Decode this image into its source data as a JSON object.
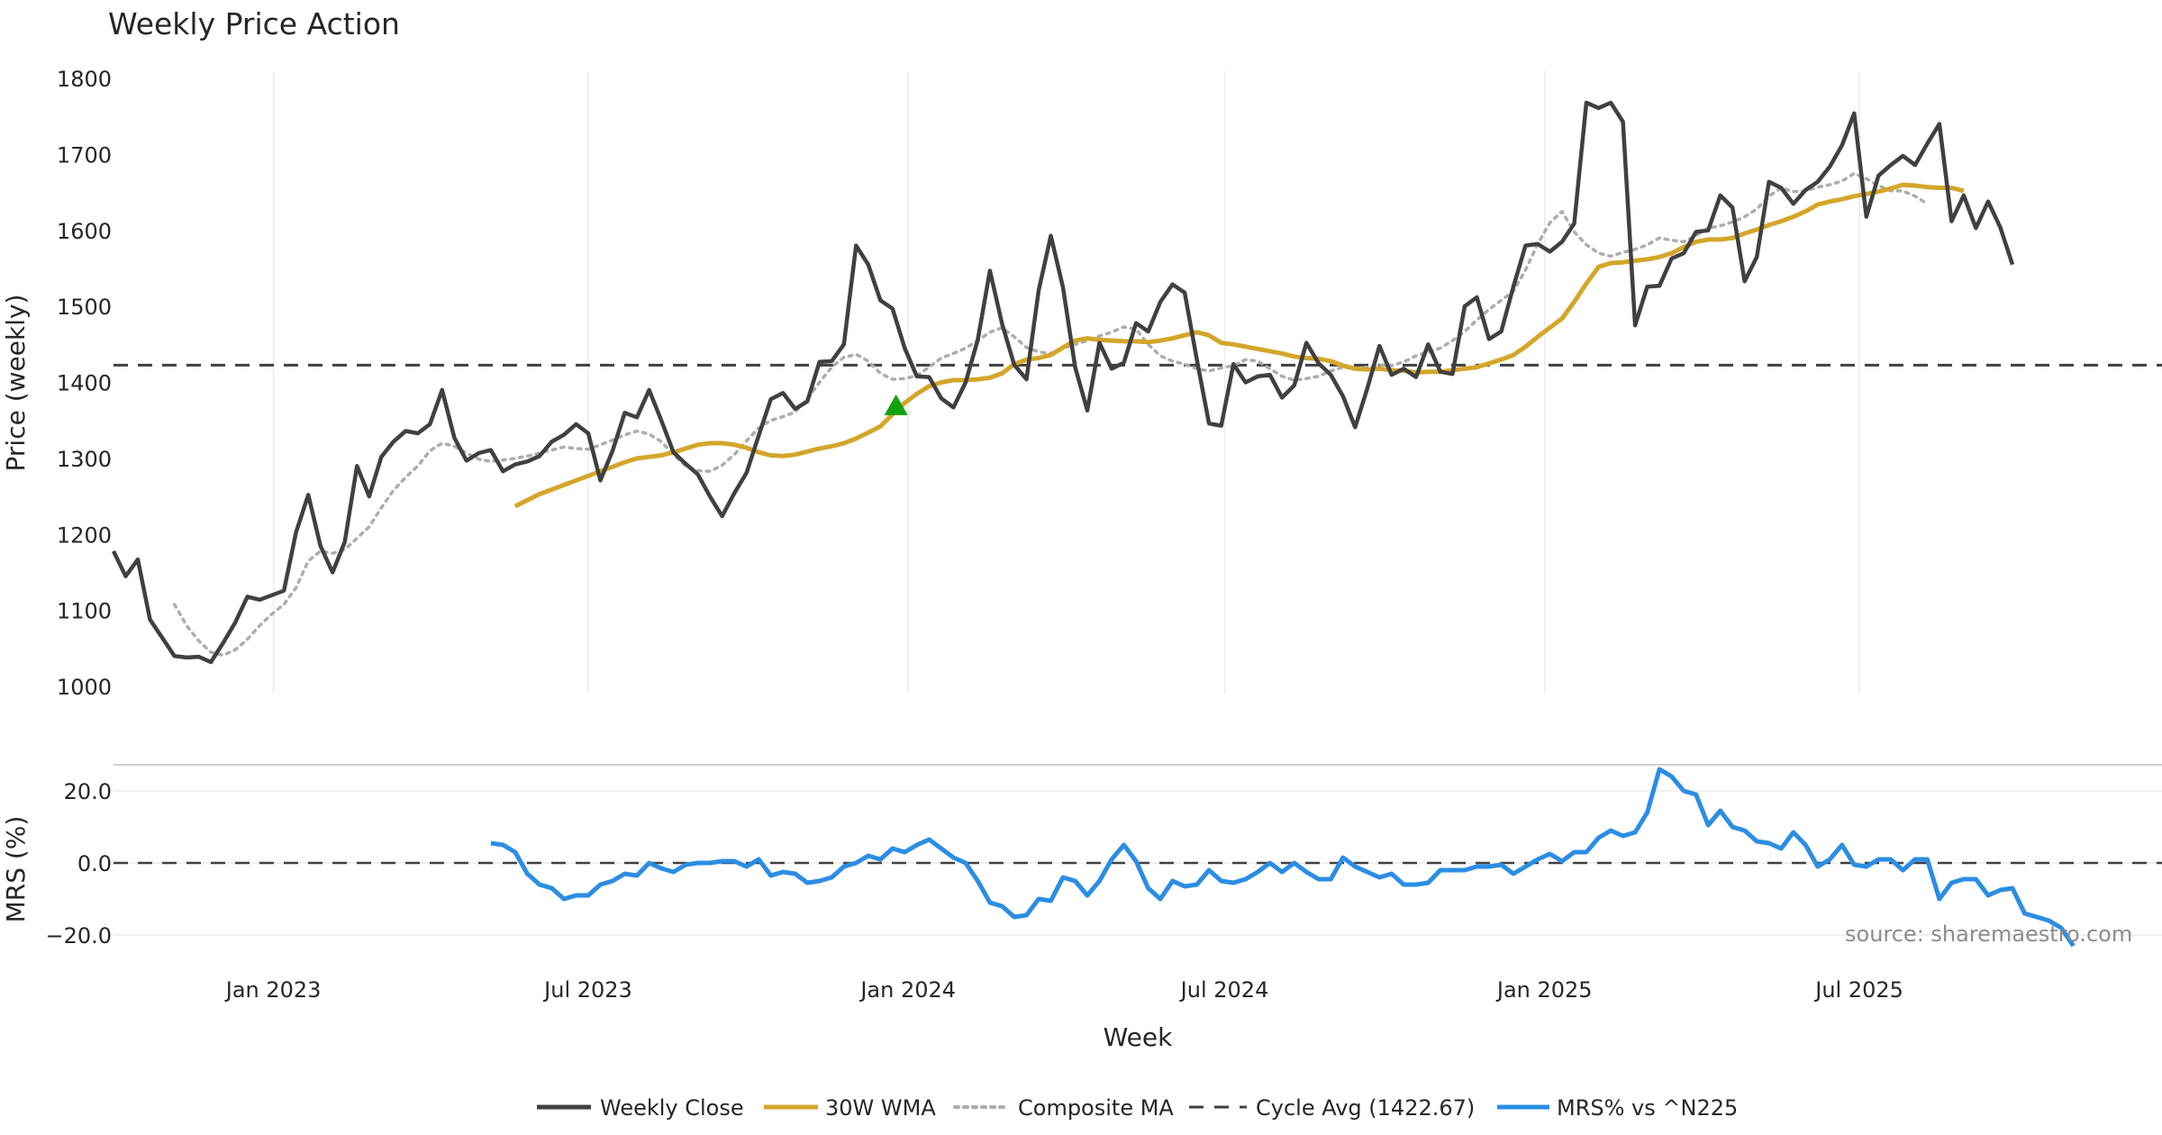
{
  "chart_data": {
    "type": "line",
    "title": "Weekly Price Action",
    "xlabel": "Week",
    "source": "source: sharemaestro.com",
    "x_ticks": [
      {
        "label": "Jan 2023",
        "date": "2023-01-01"
      },
      {
        "label": "Jul 2023",
        "date": "2023-07-01"
      },
      {
        "label": "Jan 2024",
        "date": "2024-01-01"
      },
      {
        "label": "Jul 2024",
        "date": "2024-07-01"
      },
      {
        "label": "Jan 2025",
        "date": "2025-01-01"
      },
      {
        "label": "Jul 2025",
        "date": "2025-07-01"
      }
    ],
    "x_range": [
      "2022-10-01",
      "2025-12-22"
    ],
    "price_panel": {
      "ylabel": "Price (weekly)",
      "ylim": [
        1000,
        1800
      ],
      "yticks": [
        "1000",
        "1100",
        "1200",
        "1300",
        "1400",
        "1500",
        "1600",
        "1700",
        "1800"
      ],
      "vertical_grid": true,
      "cycle_avg": 1422.67,
      "signal": {
        "date": "2023-12-25",
        "value": 1370,
        "marker": "up-triangle",
        "color": "#13a10e"
      }
    },
    "mrs_panel": {
      "ylabel": "MRS (%)",
      "ylim": [
        -25,
        27
      ],
      "yticks": [
        "20.0",
        "0.0",
        "−20.0"
      ],
      "zero_line": 0
    },
    "series": [
      {
        "name": "Weekly Close",
        "panel": "price",
        "color": "#404040",
        "style": "solid",
        "x_start": "2022-10-01",
        "step_days": 7,
        "values": [
          1178,
          1145,
          1167,
          1088,
          1064,
          1040,
          1038,
          1039,
          1032,
          1057,
          1084,
          1118,
          1114,
          1120,
          1126,
          1203,
          1252,
          1185,
          1150,
          1190,
          1290,
          1250,
          1302,
          1322,
          1336,
          1333,
          1345,
          1390,
          1327,
          1297,
          1307,
          1311,
          1283,
          1292,
          1296,
          1303,
          1322,
          1331,
          1345,
          1333,
          1271,
          1310,
          1360,
          1354,
          1390,
          1350,
          1308,
          1293,
          1279,
          1250,
          1224,
          1254,
          1281,
          1330,
          1378,
          1386,
          1365,
          1375,
          1427,
          1428,
          1450,
          1580,
          1555,
          1508,
          1497,
          1445,
          1408,
          1407,
          1379,
          1367,
          1400,
          1456,
          1547,
          1477,
          1423,
          1404,
          1521,
          1593,
          1525,
          1420,
          1363,
          1452,
          1418,
          1426,
          1478,
          1467,
          1506,
          1529,
          1518,
          1430,
          1346,
          1343,
          1424,
          1400,
          1408,
          1410,
          1380,
          1396,
          1452,
          1425,
          1410,
          1382,
          1341,
          1392,
          1448,
          1410,
          1418,
          1407,
          1450,
          1414,
          1411,
          1500,
          1512,
          1457,
          1467,
          1526,
          1580,
          1582,
          1572,
          1585,
          1609,
          1768,
          1761,
          1768,
          1743,
          1475,
          1526,
          1527,
          1563,
          1570,
          1598,
          1600,
          1646,
          1630,
          1533,
          1565,
          1664,
          1656,
          1635,
          1653,
          1664,
          1684,
          1712,
          1754,
          1618,
          1672,
          1686,
          1698,
          1686,
          1714,
          1740,
          1612,
          1646,
          1603,
          1638,
          1604,
          1555
        ]
      },
      {
        "name": "30W WMA",
        "panel": "price",
        "color": "#d4a62a",
        "style": "solid",
        "x_start": "2023-05-20",
        "step_days": 7,
        "values": [
          1237,
          1245,
          1253,
          1259,
          1265,
          1271,
          1277,
          1283,
          1289,
          1295,
          1300,
          1302,
          1304,
          1308,
          1313,
          1318,
          1320,
          1320,
          1318,
          1314,
          1308,
          1304,
          1303,
          1305,
          1309,
          1313,
          1316,
          1320,
          1326,
          1334,
          1342,
          1358,
          1373,
          1385,
          1395,
          1400,
          1403,
          1403,
          1404,
          1406,
          1412,
          1424,
          1430,
          1432,
          1436,
          1446,
          1455,
          1458,
          1456,
          1455,
          1454,
          1454,
          1453,
          1455,
          1458,
          1462,
          1466,
          1462,
          1452,
          1450,
          1447,
          1444,
          1441,
          1438,
          1434,
          1432,
          1431,
          1428,
          1422,
          1418,
          1417,
          1418,
          1416,
          1415,
          1413,
          1414,
          1414,
          1416,
          1418,
          1420,
          1425,
          1430,
          1436,
          1447,
          1460,
          1472,
          1484,
          1506,
          1530,
          1552,
          1557,
          1558,
          1560,
          1562,
          1565,
          1570,
          1578,
          1585,
          1588,
          1588,
          1590,
          1596,
          1601,
          1607,
          1612,
          1618,
          1625,
          1634,
          1638,
          1641,
          1645,
          1648,
          1651,
          1655,
          1660,
          1659,
          1657,
          1656,
          1656,
          1652
        ]
      },
      {
        "name": "Composite MA",
        "panel": "price",
        "color": "#adadad",
        "style": "dotted",
        "x_start": "2022-11-05",
        "step_days": 7,
        "values": [
          1108,
          1080,
          1060,
          1045,
          1041,
          1048,
          1062,
          1080,
          1095,
          1108,
          1130,
          1165,
          1178,
          1175,
          1180,
          1195,
          1210,
          1235,
          1258,
          1275,
          1290,
          1310,
          1320,
          1316,
          1307,
          1299,
          1296,
          1298,
          1300,
          1303,
          1307,
          1311,
          1315,
          1313,
          1312,
          1318,
          1324,
          1331,
          1336,
          1332,
          1322,
          1305,
          1290,
          1284,
          1283,
          1291,
          1305,
          1323,
          1340,
          1350,
          1355,
          1361,
          1378,
          1400,
          1420,
          1433,
          1437,
          1428,
          1412,
          1404,
          1405,
          1409,
          1420,
          1432,
          1438,
          1445,
          1455,
          1466,
          1472,
          1460,
          1446,
          1440,
          1438,
          1445,
          1450,
          1455,
          1461,
          1466,
          1473,
          1470,
          1450,
          1435,
          1428,
          1424,
          1418,
          1415,
          1419,
          1422,
          1430,
          1428,
          1418,
          1408,
          1403,
          1405,
          1408,
          1415,
          1420,
          1418,
          1420,
          1423,
          1422,
          1427,
          1435,
          1440,
          1445,
          1455,
          1467,
          1482,
          1496,
          1508,
          1520,
          1548,
          1582,
          1610,
          1625,
          1598,
          1581,
          1570,
          1566,
          1571,
          1575,
          1581,
          1590,
          1587,
          1585,
          1593,
          1603,
          1606,
          1611,
          1618,
          1628,
          1645,
          1656,
          1651,
          1652,
          1657,
          1660,
          1665,
          1675,
          1668,
          1659,
          1652,
          1652,
          1645,
          1635
        ]
      },
      {
        "name": "MRS% vs ^N225",
        "panel": "mrs",
        "color": "#2b8de4",
        "style": "solid",
        "x_start": "2023-05-06",
        "step_days": 7,
        "values": [
          5.5,
          5,
          3,
          -3,
          -6,
          -7,
          -10,
          -9,
          -9,
          -6,
          -5,
          -3,
          -3.5,
          0,
          -1.5,
          -2.5,
          -0.5,
          0,
          0,
          0.5,
          0.5,
          -1,
          1,
          -3.5,
          -2.5,
          -3,
          -5.5,
          -5,
          -4,
          -1,
          0,
          2,
          1,
          4,
          3,
          5,
          6.5,
          4,
          1.5,
          0,
          -5,
          -11,
          -12,
          -15,
          -14.5,
          -10,
          -10.5,
          -4,
          -5,
          -9,
          -5,
          1,
          5,
          0.5,
          -7,
          -10,
          -5,
          -6.5,
          -6,
          -2,
          -5,
          -5.5,
          -4.5,
          -2.5,
          0,
          -2.5,
          0,
          -2.5,
          -4.5,
          -4.5,
          1.5,
          -1,
          -2.5,
          -4,
          -3,
          -6,
          -6,
          -5.5,
          -2,
          -2,
          -2,
          -1,
          -1,
          -0.5,
          -3,
          -1,
          1,
          2.5,
          0.5,
          3,
          3,
          7,
          9,
          7.5,
          8.5,
          14,
          26,
          24,
          20,
          19,
          10.5,
          14.5,
          10,
          9,
          6,
          5.5,
          4,
          8.5,
          5,
          -1,
          1,
          5,
          -0.5,
          -1,
          1,
          1,
          -2,
          1,
          1,
          -10,
          -5.5,
          -4.5,
          -4.5,
          -9,
          -7.5,
          -7,
          -14,
          -15,
          -16,
          -18,
          -23
        ]
      }
    ],
    "legend": {
      "placement": "bottom-center",
      "entries": [
        "Weekly Close",
        "30W WMA",
        "Composite MA",
        "Cycle Avg (1422.67)",
        "MRS% vs ^N225"
      ]
    }
  }
}
